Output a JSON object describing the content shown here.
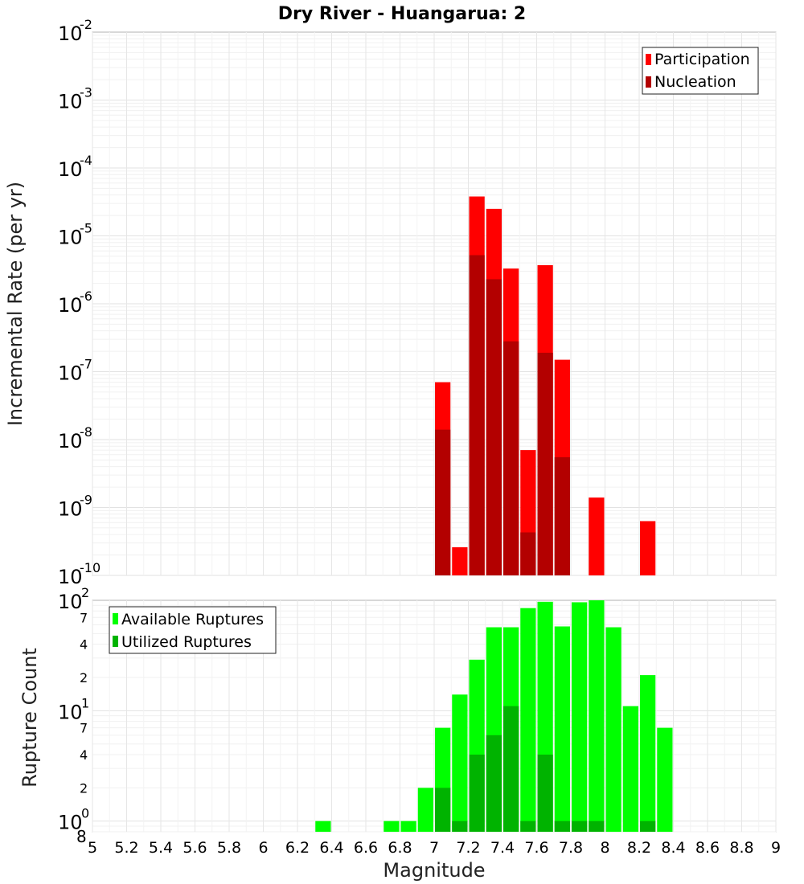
{
  "chart_data": [
    {
      "type": "bar",
      "title": "Dry River - Huangarua: 2",
      "xlabel": "",
      "ylabel": "Incremental Rate (per yr)",
      "xlim": [
        5,
        9
      ],
      "ylim": [
        1e-10,
        0.01
      ],
      "yscale": "log",
      "ytick_exponents": [
        "-10",
        "-9",
        "-8",
        "-7",
        "-6",
        "-5",
        "-4",
        "-3",
        "-2"
      ],
      "ytick_base": "10",
      "grid": true,
      "legend_position": "top-right",
      "bin_width": 0.1,
      "x": [
        7.05,
        7.15,
        7.25,
        7.35,
        7.45,
        7.55,
        7.65,
        7.75,
        7.95,
        8.25
      ],
      "series": [
        {
          "name": "Participation",
          "color": "#ff0000",
          "values": [
            7e-08,
            2.6e-10,
            3.8e-05,
            2.5e-05,
            3.3e-06,
            7e-09,
            3.7e-06,
            1.5e-07,
            1.4e-09,
            6.3e-10
          ]
        },
        {
          "name": "Nucleation",
          "color": "#b30000",
          "values": [
            1.4e-08,
            0,
            5.2e-06,
            2.3e-06,
            2.8e-07,
            4.3e-10,
            1.9e-07,
            5.5e-09,
            0,
            0
          ]
        }
      ]
    },
    {
      "type": "bar",
      "title": "",
      "xlabel": "Magnitude",
      "ylabel": "Rupture Count",
      "xlim": [
        5,
        9
      ],
      "ylim": [
        0.8,
        100
      ],
      "yscale": "log",
      "major_ticks": [
        {
          "value": 1,
          "base": "10",
          "exp": "0"
        },
        {
          "value": 10,
          "base": "10",
          "exp": "1"
        },
        {
          "value": 100,
          "base": "10",
          "exp": "2"
        }
      ],
      "minor_ticks": [
        {
          "value": 0.8,
          "label": "8"
        },
        {
          "value": 2,
          "label": "2"
        },
        {
          "value": 4,
          "label": "4"
        },
        {
          "value": 7,
          "label": "7"
        },
        {
          "value": 20,
          "label": "2"
        },
        {
          "value": 40,
          "label": "4"
        },
        {
          "value": 70,
          "label": "7"
        }
      ],
      "x_ticks": [
        "5",
        "5.2",
        "5.4",
        "5.6",
        "5.8",
        "6",
        "6.2",
        "6.4",
        "6.6",
        "6.8",
        "7",
        "7.2",
        "7.4",
        "7.6",
        "7.8",
        "8",
        "8.2",
        "8.4",
        "8.6",
        "8.8",
        "9"
      ],
      "grid": true,
      "legend_position": "top-left",
      "bin_width": 0.1,
      "x": [
        6.35,
        6.75,
        6.85,
        6.95,
        7.05,
        7.15,
        7.25,
        7.35,
        7.45,
        7.55,
        7.65,
        7.75,
        7.85,
        7.95,
        8.05,
        8.15,
        8.25,
        8.35
      ],
      "series": [
        {
          "name": "Available Ruptures",
          "color": "#00ff00",
          "values": [
            1,
            1,
            1,
            2,
            7,
            14,
            29,
            57,
            57,
            85,
            97,
            58,
            96,
            118,
            57,
            11,
            21,
            7
          ]
        },
        {
          "name": "Utilized Ruptures",
          "color": "#00b300",
          "values": [
            0,
            0,
            0,
            0,
            2,
            1,
            4,
            6,
            11,
            1,
            4,
            1,
            1,
            1,
            0,
            0,
            1,
            0
          ]
        }
      ]
    }
  ]
}
